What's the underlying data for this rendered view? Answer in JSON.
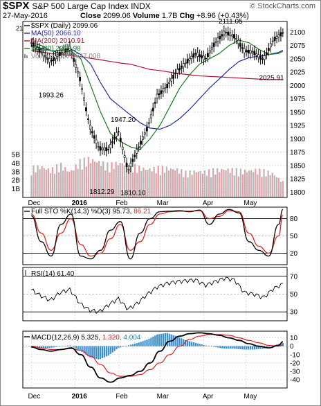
{
  "header": {
    "symbol": "$SPX",
    "name": "S&P 500 Large Cap Index",
    "exchange": "INDX",
    "date": "27-May-2016",
    "close_label": "Close",
    "close": "2099.06",
    "volume_label": "Volume",
    "volume": "1.7B",
    "chg_label": "Chg",
    "chg": "+8.96 (+0.43%)",
    "logo": "© StockCharts.com"
  },
  "colors": {
    "price": "#000000",
    "ma50": "#1c2aa6",
    "ma200": "#b01530",
    "ma20": "#157a1f",
    "volume_up": "#b8b8b8",
    "volume_down": "#e8a0a8",
    "sto_k": "#000000",
    "sto_d": "#e02020",
    "rsi": "#000000",
    "macd": "#000000",
    "signal": "#e02020",
    "hist": "#3a8fd0",
    "hist_value": "#1a86b4"
  },
  "chart_data": [
    {
      "type": "line",
      "title": "$SPX (Daily) 2099.06",
      "x": [
        "2015-12-01",
        "2015-12-08",
        "2015-12-15",
        "2015-12-22",
        "2015-12-29",
        "2016-01-05",
        "2016-01-12",
        "2016-01-19",
        "2016-01-26",
        "2016-02-02",
        "2016-02-09",
        "2016-02-16",
        "2016-02-23",
        "2016-03-01",
        "2016-03-08",
        "2016-03-15",
        "2016-03-22",
        "2016-03-29",
        "2016-04-05",
        "2016-04-12",
        "2016-04-19",
        "2016-04-26",
        "2016-05-03",
        "2016-05-10",
        "2016-05-17",
        "2016-05-24",
        "2016-05-27"
      ],
      "x_tick_labels": [
        "Dec",
        "2016",
        "Feb",
        "Mar",
        "Apr",
        "May"
      ],
      "ylim": [
        1790,
        2120
      ],
      "y_ticks": [
        1800,
        1825,
        1850,
        1875,
        1900,
        1925,
        1950,
        1975,
        2000,
        2025,
        2050,
        2075,
        2100
      ],
      "series": [
        {
          "name": "$SPX (Daily) 2099.06",
          "values": [
            2080,
            2063,
            2045,
            2060,
            2070,
            2015,
            1925,
            1882,
            1880,
            1915,
            1840,
            1880,
            1920,
            1980,
            1998,
            2025,
            2043,
            2060,
            2050,
            2080,
            2100,
            2092,
            2065,
            2062,
            2048,
            2085,
            2099
          ]
        },
        {
          "name": "MA(50) 2066.10",
          "values": [
            2075,
            2070,
            2065,
            2065,
            2068,
            2058,
            2040,
            2005,
            1975,
            1960,
            1945,
            1930,
            1920,
            1918,
            1925,
            1938,
            1955,
            1975,
            1995,
            2012,
            2030,
            2045,
            2052,
            2055,
            2058,
            2062,
            2066
          ]
        },
        {
          "name": "MA(200) 2010.91",
          "values": [
            2065,
            2063,
            2060,
            2058,
            2056,
            2054,
            2051,
            2048,
            2045,
            2042,
            2040,
            2035,
            2030,
            2028,
            2025,
            2022,
            2020,
            2018,
            2017,
            2016,
            2015,
            2014,
            2013,
            2012,
            2011,
            2011,
            2011
          ]
        },
        {
          "name": "MA(20) 2063.98",
          "values": [
            2080,
            2075,
            2065,
            2060,
            2065,
            2050,
            2000,
            1950,
            1910,
            1895,
            1885,
            1880,
            1900,
            1925,
            1960,
            1995,
            2020,
            2040,
            2050,
            2060,
            2075,
            2085,
            2080,
            2068,
            2058,
            2060,
            2064
          ]
        }
      ],
      "annotations": [
        {
          "x": "2015-12-15",
          "y": 1993.26,
          "label": "1993.26"
        },
        {
          "x": "2016-01-20",
          "y": 1812.29,
          "label": "1812.29"
        },
        {
          "x": "2016-02-04",
          "y": 1947.2,
          "label": "1947.20"
        },
        {
          "x": "2016-02-11",
          "y": 1810.1,
          "label": "1810.10"
        },
        {
          "x": "2016-04-20",
          "y": 2111.05,
          "label": "2111.05"
        },
        {
          "x": "2016-05-19",
          "y": 2025.91,
          "label": "2025.91"
        }
      ],
      "volume_legend": "Volume 1,707,947,008",
      "volume_ticks": [
        "1B",
        "2B",
        "3B",
        "4B",
        "5B"
      ],
      "volume_values": [
        3.2,
        3.4,
        3.0,
        3.6,
        2.8,
        3.9,
        4.2,
        3.9,
        3.5,
        3.8,
        3.7,
        3.3,
        3.1,
        3.2,
        3.2,
        3.1,
        2.7,
        2.9,
        2.8,
        3.0,
        3.1,
        3.0,
        2.9,
        3.0,
        2.9,
        2.6,
        1.7
      ],
      "legend_position": "top-left"
    },
    {
      "type": "line",
      "title": "Full STO %K(14,3) %D(3)",
      "k_label": "95.73",
      "d_label": "86.21",
      "ylim": [
        0,
        100
      ],
      "y_ticks": [
        20,
        50,
        80
      ],
      "x": [
        "2015-12-01",
        "2015-12-08",
        "2015-12-15",
        "2015-12-22",
        "2015-12-29",
        "2016-01-05",
        "2016-01-12",
        "2016-01-19",
        "2016-01-26",
        "2016-02-02",
        "2016-02-09",
        "2016-02-16",
        "2016-02-23",
        "2016-03-01",
        "2016-03-08",
        "2016-03-15",
        "2016-03-22",
        "2016-03-29",
        "2016-04-05",
        "2016-04-12",
        "2016-04-19",
        "2016-04-26",
        "2016-05-03",
        "2016-05-10",
        "2016-05-17",
        "2016-05-24",
        "2016-05-27"
      ],
      "series": [
        {
          "name": "%K(14,3)",
          "values": [
            85,
            40,
            15,
            70,
            88,
            15,
            10,
            25,
            60,
            75,
            10,
            55,
            80,
            92,
            93,
            94,
            92,
            95,
            70,
            88,
            96,
            90,
            40,
            25,
            15,
            70,
            96
          ]
        },
        {
          "name": "%D(3)",
          "values": [
            88,
            55,
            25,
            55,
            80,
            35,
            15,
            20,
            45,
            70,
            25,
            40,
            70,
            88,
            92,
            93,
            93,
            94,
            80,
            84,
            94,
            92,
            55,
            32,
            20,
            50,
            86
          ]
        }
      ]
    },
    {
      "type": "line",
      "title": "RSI(14) 61.40",
      "ylim": [
        20,
        80
      ],
      "y_ticks": [
        30,
        50,
        70
      ],
      "x": [
        "2015-12-01",
        "2015-12-08",
        "2015-12-15",
        "2015-12-22",
        "2015-12-29",
        "2016-01-05",
        "2016-01-12",
        "2016-01-19",
        "2016-01-26",
        "2016-02-02",
        "2016-02-09",
        "2016-02-16",
        "2016-02-23",
        "2016-03-01",
        "2016-03-08",
        "2016-03-15",
        "2016-03-22",
        "2016-03-29",
        "2016-04-05",
        "2016-04-12",
        "2016-04-19",
        "2016-04-26",
        "2016-05-03",
        "2016-05-10",
        "2016-05-17",
        "2016-05-24",
        "2016-05-27"
      ],
      "series": [
        {
          "name": "RSI(14) 61.40",
          "values": [
            55,
            48,
            43,
            52,
            55,
            40,
            32,
            30,
            38,
            45,
            33,
            40,
            50,
            58,
            62,
            64,
            65,
            66,
            60,
            64,
            68,
            66,
            52,
            50,
            46,
            56,
            61.4
          ]
        }
      ]
    },
    {
      "type": "bar",
      "title": "MACD(12,26,9)",
      "macd_label": "5.325",
      "signal_label": "1.320",
      "hist_label": "4.004",
      "ylim": [
        -50,
        18
      ],
      "y_ticks": [
        10,
        0,
        -10,
        -20,
        -30,
        -40
      ],
      "x": [
        "2015-12-01",
        "2015-12-08",
        "2015-12-15",
        "2015-12-22",
        "2015-12-29",
        "2016-01-05",
        "2016-01-12",
        "2016-01-19",
        "2016-01-26",
        "2016-02-02",
        "2016-02-09",
        "2016-02-16",
        "2016-02-23",
        "2016-03-01",
        "2016-03-08",
        "2016-03-15",
        "2016-03-22",
        "2016-03-29",
        "2016-04-05",
        "2016-04-12",
        "2016-04-19",
        "2016-04-26",
        "2016-05-03",
        "2016-05-10",
        "2016-05-17",
        "2016-05-24",
        "2016-05-27"
      ],
      "x_tick_labels": [
        "Dec",
        "2016",
        "Feb",
        "Mar",
        "Apr",
        "May"
      ],
      "series": [
        {
          "name": "MACD(12,26,9)",
          "values": [
            -1,
            -4,
            -6,
            -4,
            -2,
            -10,
            -25,
            -38,
            -43,
            -38,
            -35,
            -30,
            -20,
            -6,
            6,
            12,
            15,
            16,
            15,
            13,
            10,
            7,
            3,
            0,
            -2,
            1,
            5.3
          ]
        },
        {
          "name": "Signal",
          "values": [
            0,
            -2,
            -4,
            -4,
            -3,
            -5,
            -12,
            -22,
            -32,
            -36,
            -36,
            -34,
            -28,
            -20,
            -10,
            0,
            8,
            12,
            14,
            14,
            13,
            10,
            7,
            4,
            1,
            0,
            1.3
          ]
        },
        {
          "name": "Histogram",
          "values": [
            -1,
            -2,
            -2,
            0,
            1,
            -5,
            -13,
            -16,
            -11,
            -2,
            1,
            4,
            8,
            14,
            16,
            12,
            7,
            4,
            1,
            -1,
            -3,
            -3,
            -4,
            -4,
            -3,
            1,
            4.0
          ]
        }
      ]
    }
  ]
}
